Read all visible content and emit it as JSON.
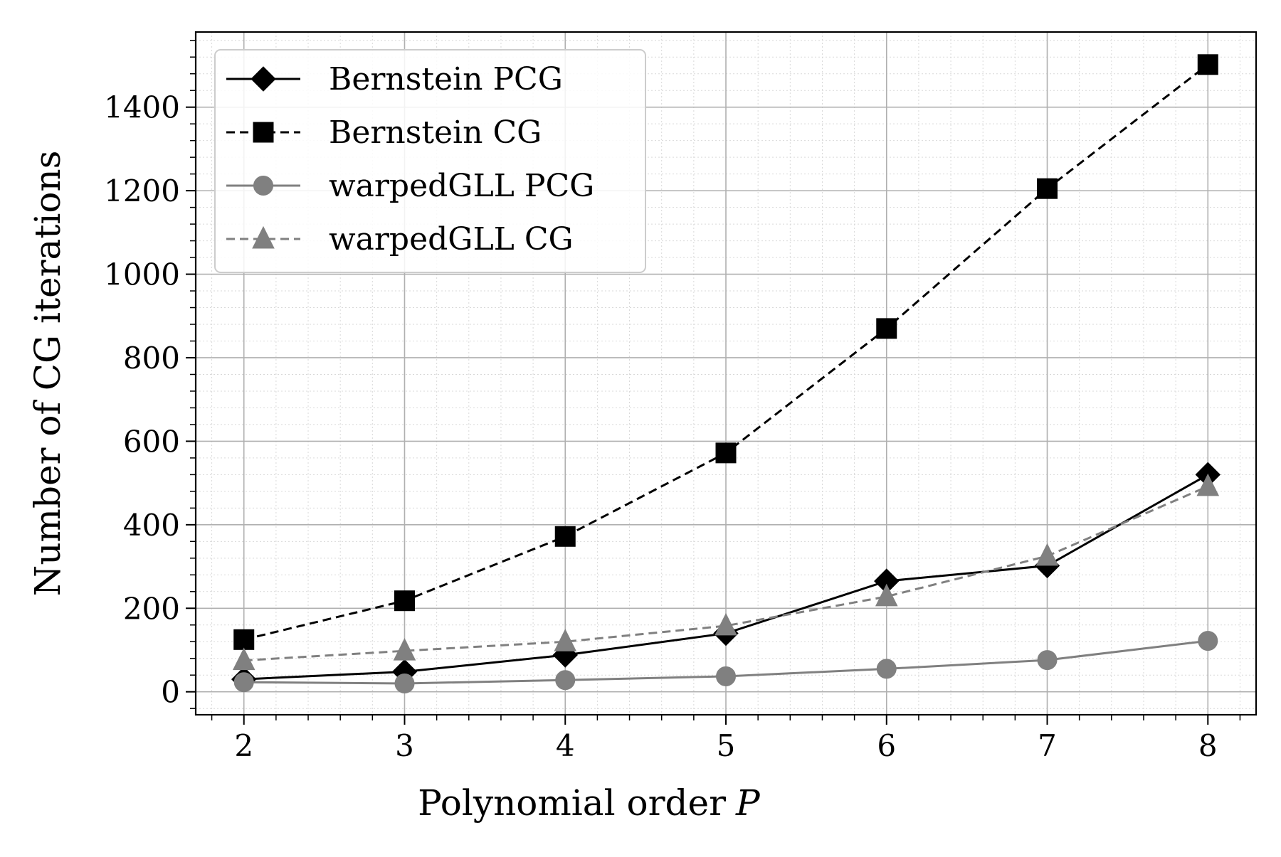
{
  "chart_data": {
    "type": "line",
    "xlabel": "Polynomial order",
    "xlabel_symbol": "P",
    "ylabel": "Number of CG iterations",
    "xlim": [
      1.7,
      8.3
    ],
    "ylim": [
      -55,
      1580
    ],
    "x_ticks": [
      2,
      3,
      4,
      5,
      6,
      7,
      8
    ],
    "y_ticks": [
      0,
      200,
      400,
      600,
      800,
      1000,
      1200,
      1400
    ],
    "grid": true,
    "minor_grid": true,
    "legend_position": "top-left",
    "x": [
      2,
      3,
      4,
      5,
      6,
      7,
      8
    ],
    "series": [
      {
        "name": "Bernstein PCG",
        "values": [
          30,
          48,
          88,
          140,
          265,
          302,
          520
        ],
        "color": "#000000",
        "line_style": "solid",
        "marker": "diamond"
      },
      {
        "name": "Bernstein CG",
        "values": [
          125,
          218,
          372,
          572,
          870,
          1205,
          1502
        ],
        "color": "#000000",
        "line_style": "dashed",
        "marker": "square"
      },
      {
        "name": "warpedGLL PCG",
        "values": [
          23,
          20,
          28,
          37,
          55,
          76,
          122
        ],
        "color": "#808080",
        "line_style": "solid",
        "marker": "circle"
      },
      {
        "name": "warpedGLL CG",
        "values": [
          75,
          98,
          120,
          158,
          228,
          325,
          492
        ],
        "color": "#808080",
        "line_style": "dashed",
        "marker": "triangle"
      }
    ]
  }
}
